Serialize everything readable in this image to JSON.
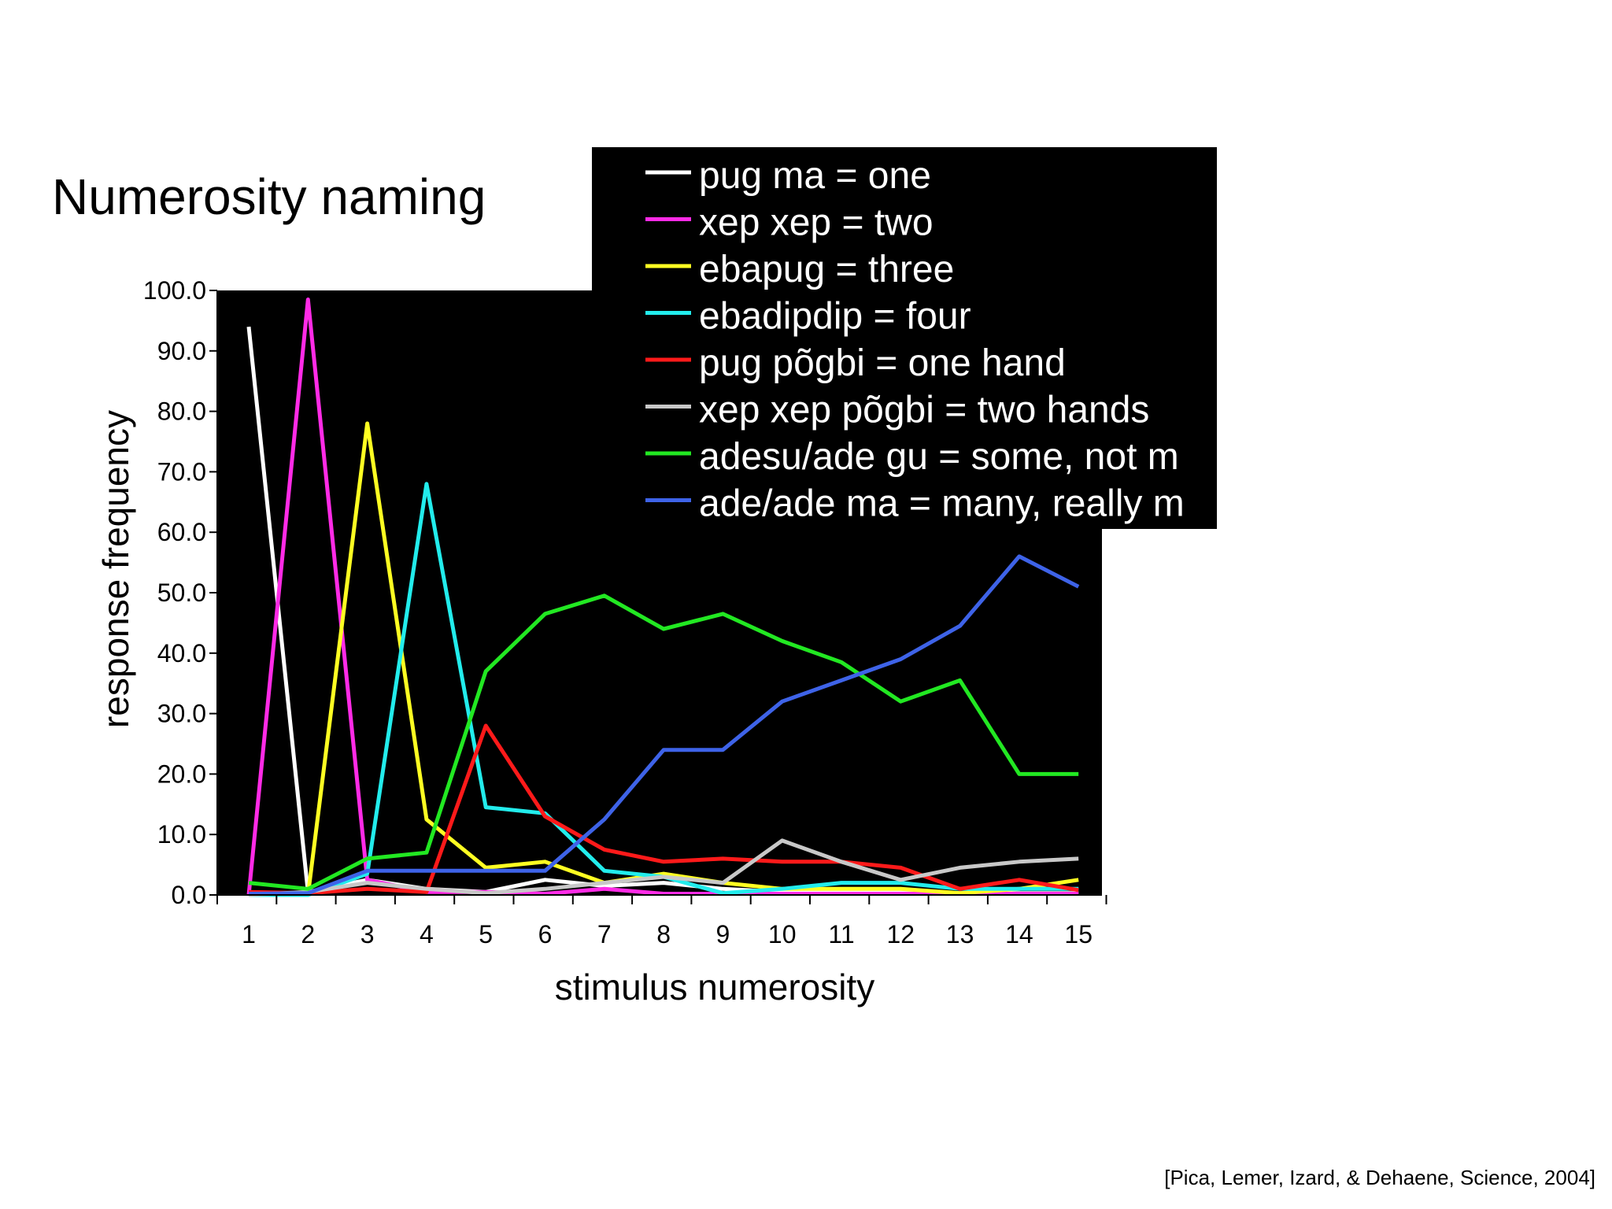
{
  "slide": {
    "title": "Numerosity naming",
    "citation": "[Pica, Lemer, Izard, & Dehaene, Science, 2004]"
  },
  "chart_data": {
    "type": "line",
    "title": "",
    "xlabel": "stimulus numerosity",
    "ylabel": "response frequency",
    "x": [
      1,
      2,
      3,
      4,
      5,
      6,
      7,
      8,
      9,
      10,
      11,
      12,
      13,
      14,
      15
    ],
    "xticks": [
      "1",
      "2",
      "3",
      "4",
      "5",
      "6",
      "7",
      "8",
      "9",
      "10",
      "11",
      "12",
      "13",
      "14",
      "15"
    ],
    "ylim": [
      0,
      100
    ],
    "yticks": [
      "0.0",
      "10.0",
      "20.0",
      "30.0",
      "40.0",
      "50.0",
      "60.0",
      "70.0",
      "80.0",
      "90.0",
      "100.0"
    ],
    "plot_background": "#000000",
    "legend_background": "#000000",
    "legend_position": "top-right",
    "grid": false,
    "series": [
      {
        "name": "pug ma = one",
        "color": "#ffffff",
        "values": [
          94,
          0.5,
          2.5,
          1,
          0.5,
          2.5,
          1.5,
          2,
          1,
          0.5,
          0.5,
          0.5,
          0.3,
          0.3,
          0.3
        ]
      },
      {
        "name": "xep xep = two",
        "color": "#ff2be6",
        "values": [
          0,
          98.5,
          2.5,
          0.5,
          0.5,
          0.2,
          1,
          0.2,
          0.2,
          0.2,
          0.2,
          0.2,
          0.2,
          0.2,
          0.2
        ]
      },
      {
        "name": "ebapug = three",
        "color": "#ffff22",
        "values": [
          0,
          0,
          78,
          12.5,
          4.5,
          5.5,
          2,
          3.5,
          2,
          1,
          1,
          1,
          0.3,
          1,
          2.5
        ]
      },
      {
        "name": "ebadipdip = four",
        "color": "#22ecec",
        "values": [
          0,
          0,
          3.5,
          68,
          14.5,
          13.5,
          4,
          3,
          0.3,
          1,
          2,
          2,
          1,
          1,
          1
        ]
      },
      {
        "name": "pug põgbi = one hand",
        "color": "#ff1a1a",
        "values": [
          0.5,
          0.3,
          1,
          0.5,
          28,
          13,
          7.5,
          5.5,
          6,
          5.5,
          5.5,
          4.5,
          1,
          2.5,
          0.8
        ]
      },
      {
        "name": "xep xep põgbi = two hands",
        "color": "#c8c8c8",
        "values": [
          0,
          0.5,
          2,
          1,
          0.3,
          1,
          2,
          3,
          2,
          9,
          5.5,
          2.5,
          4.5,
          5.5,
          6
        ]
      },
      {
        "name": "adesu/ade gu = some, not m",
        "color": "#22e822",
        "values": [
          2,
          1,
          6,
          7,
          37,
          46.5,
          49.5,
          44,
          46.5,
          42,
          38.5,
          32,
          35.5,
          20,
          20
        ]
      },
      {
        "name": "ade/ade ma = many, really m",
        "color": "#3e63e8",
        "values": [
          0.2,
          0.3,
          4,
          4,
          4,
          4,
          12.5,
          24,
          24,
          32,
          35.5,
          39,
          44.5,
          56,
          51
        ]
      }
    ]
  }
}
